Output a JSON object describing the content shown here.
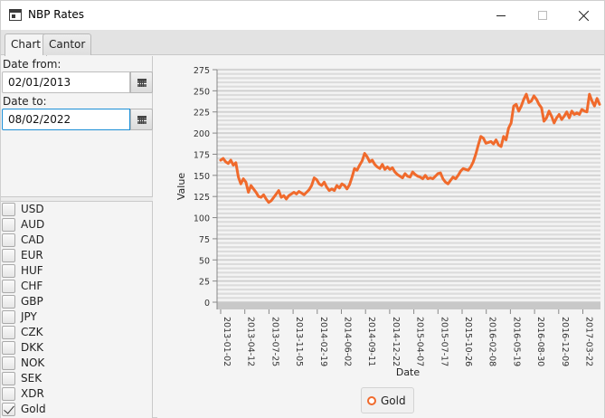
{
  "window": {
    "title": "NBP Rates"
  },
  "tabs": [
    {
      "label": "Chart",
      "active": true
    },
    {
      "label": "Cantor",
      "active": false
    }
  ],
  "filters": {
    "date_from_label": "Date from:",
    "date_from_value": "02/01/2013",
    "date_to_label": "Date to:",
    "date_to_value": "08/02/2022"
  },
  "currencies": [
    {
      "code": "USD",
      "checked": false
    },
    {
      "code": "AUD",
      "checked": false
    },
    {
      "code": "CAD",
      "checked": false
    },
    {
      "code": "EUR",
      "checked": false
    },
    {
      "code": "HUF",
      "checked": false
    },
    {
      "code": "CHF",
      "checked": false
    },
    {
      "code": "GBP",
      "checked": false
    },
    {
      "code": "JPY",
      "checked": false
    },
    {
      "code": "CZK",
      "checked": false
    },
    {
      "code": "DKK",
      "checked": false
    },
    {
      "code": "NOK",
      "checked": false
    },
    {
      "code": "SEK",
      "checked": false
    },
    {
      "code": "XDR",
      "checked": false
    },
    {
      "code": "Gold",
      "checked": true
    }
  ],
  "chart_data": {
    "type": "line",
    "xlabel": "Date",
    "ylabel": "Value",
    "ylim": [
      0,
      275
    ],
    "y_ticks": [
      0,
      25,
      50,
      75,
      100,
      125,
      150,
      175,
      200,
      225,
      250,
      275
    ],
    "x_tick_labels": [
      "2013-01-02",
      "2013-04-12",
      "2013-07-25",
      "2013-11-05",
      "2014-02-19",
      "2014-06-02",
      "2014-09-11",
      "2014-12-22",
      "2015-04-07",
      "2015-07-17",
      "2015-10-26",
      "2016-02-08",
      "2016-05-19",
      "2016-08-30",
      "2016-12-09",
      "2017-03-22"
    ],
    "grid": true,
    "legend_position": "bottom",
    "series_color": "#f06a2c",
    "series": [
      {
        "name": "Gold",
        "values": [
          168,
          170,
          166,
          164,
          168,
          162,
          165,
          148,
          140,
          146,
          142,
          130,
          138,
          134,
          130,
          125,
          124,
          127,
          122,
          118,
          120,
          124,
          128,
          132,
          124,
          126,
          122,
          126,
          128,
          130,
          128,
          131,
          129,
          127,
          130,
          133,
          138,
          147,
          145,
          140,
          138,
          142,
          136,
          132,
          134,
          132,
          138,
          135,
          140,
          138,
          134,
          139,
          148,
          158,
          156,
          162,
          167,
          176,
          172,
          166,
          168,
          163,
          160,
          158,
          163,
          157,
          160,
          157,
          159,
          154,
          151,
          149,
          147,
          152,
          149,
          148,
          154,
          151,
          149,
          148,
          146,
          150,
          146,
          147,
          146,
          149,
          152,
          153,
          146,
          142,
          140,
          144,
          148,
          146,
          150,
          155,
          158,
          157,
          156,
          160,
          166,
          175,
          186,
          196,
          194,
          188,
          189,
          190,
          187,
          192,
          186,
          184,
          196,
          192,
          206,
          212,
          232,
          234,
          226,
          232,
          240,
          246,
          236,
          238,
          244,
          240,
          234,
          230,
          214,
          218,
          226,
          220,
          212,
          218,
          222,
          216,
          220,
          225,
          218,
          226,
          222,
          224,
          222,
          228,
          226,
          225,
          246,
          238,
          232,
          241,
          234
        ]
      }
    ]
  }
}
